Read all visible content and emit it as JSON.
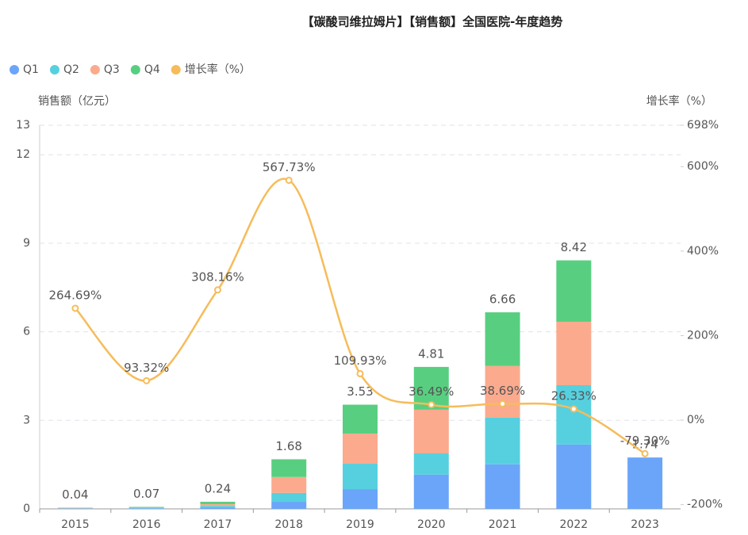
{
  "chart_data": {
    "type": "bar+line",
    "title": "【碳酸司维拉姆片】【销售额】全国医院-年度趋势",
    "y_label": "销售额（亿元）",
    "y2_label": "增长率（%）",
    "categories": [
      "2015",
      "2016",
      "2017",
      "2018",
      "2019",
      "2020",
      "2021",
      "2022",
      "2023"
    ],
    "series": [
      {
        "name": "Q1",
        "color": "#6aa5f9",
        "type": "bar",
        "values": [
          0.01,
          0.02,
          0.05,
          0.24,
          0.67,
          1.16,
          1.51,
          2.18,
          1.74
        ]
      },
      {
        "name": "Q2",
        "color": "#56d0df",
        "type": "bar",
        "values": [
          0.01,
          0.02,
          0.05,
          0.3,
          0.86,
          0.72,
          1.58,
          2.01,
          null
        ]
      },
      {
        "name": "Q3",
        "color": "#fbaa8e",
        "type": "bar",
        "values": [
          0.01,
          0.02,
          0.06,
          0.54,
          1.02,
          1.48,
          1.75,
          2.15,
          null
        ]
      },
      {
        "name": "Q4",
        "color": "#58cf80",
        "type": "bar",
        "values": [
          0.01,
          0.01,
          0.08,
          0.6,
          0.98,
          1.45,
          1.82,
          2.08,
          null
        ]
      },
      {
        "name": "增长率（%）",
        "color": "#f6bc5a",
        "type": "line",
        "axis": "y2",
        "values": [
          264.69,
          93.32,
          308.16,
          567.73,
          109.93,
          36.49,
          38.69,
          26.33,
          -79.3
        ],
        "value_labels": [
          "264.69%",
          "93.32%",
          "308.16%",
          "567.73%",
          "109.93%",
          "36.49%",
          "38.69%",
          "26.33%",
          "-79.30%"
        ]
      }
    ],
    "totals": [
      0.04,
      0.07,
      0.24,
      1.68,
      3.53,
      4.81,
      6.66,
      8.42,
      1.74
    ],
    "ylim": [
      0,
      13
    ],
    "yticks": [
      0,
      3,
      6,
      9,
      12,
      13
    ],
    "y2lim": [
      -210,
      698
    ],
    "y2ticks": [
      {
        "value": -200,
        "label": "-200%"
      },
      {
        "value": 0,
        "label": "0%"
      },
      {
        "value": 200,
        "label": "200%"
      },
      {
        "value": 400,
        "label": "400%"
      },
      {
        "value": 600,
        "label": "600%"
      },
      {
        "value": 698,
        "label": "698%"
      }
    ],
    "grid": true,
    "legend": "top-left"
  }
}
